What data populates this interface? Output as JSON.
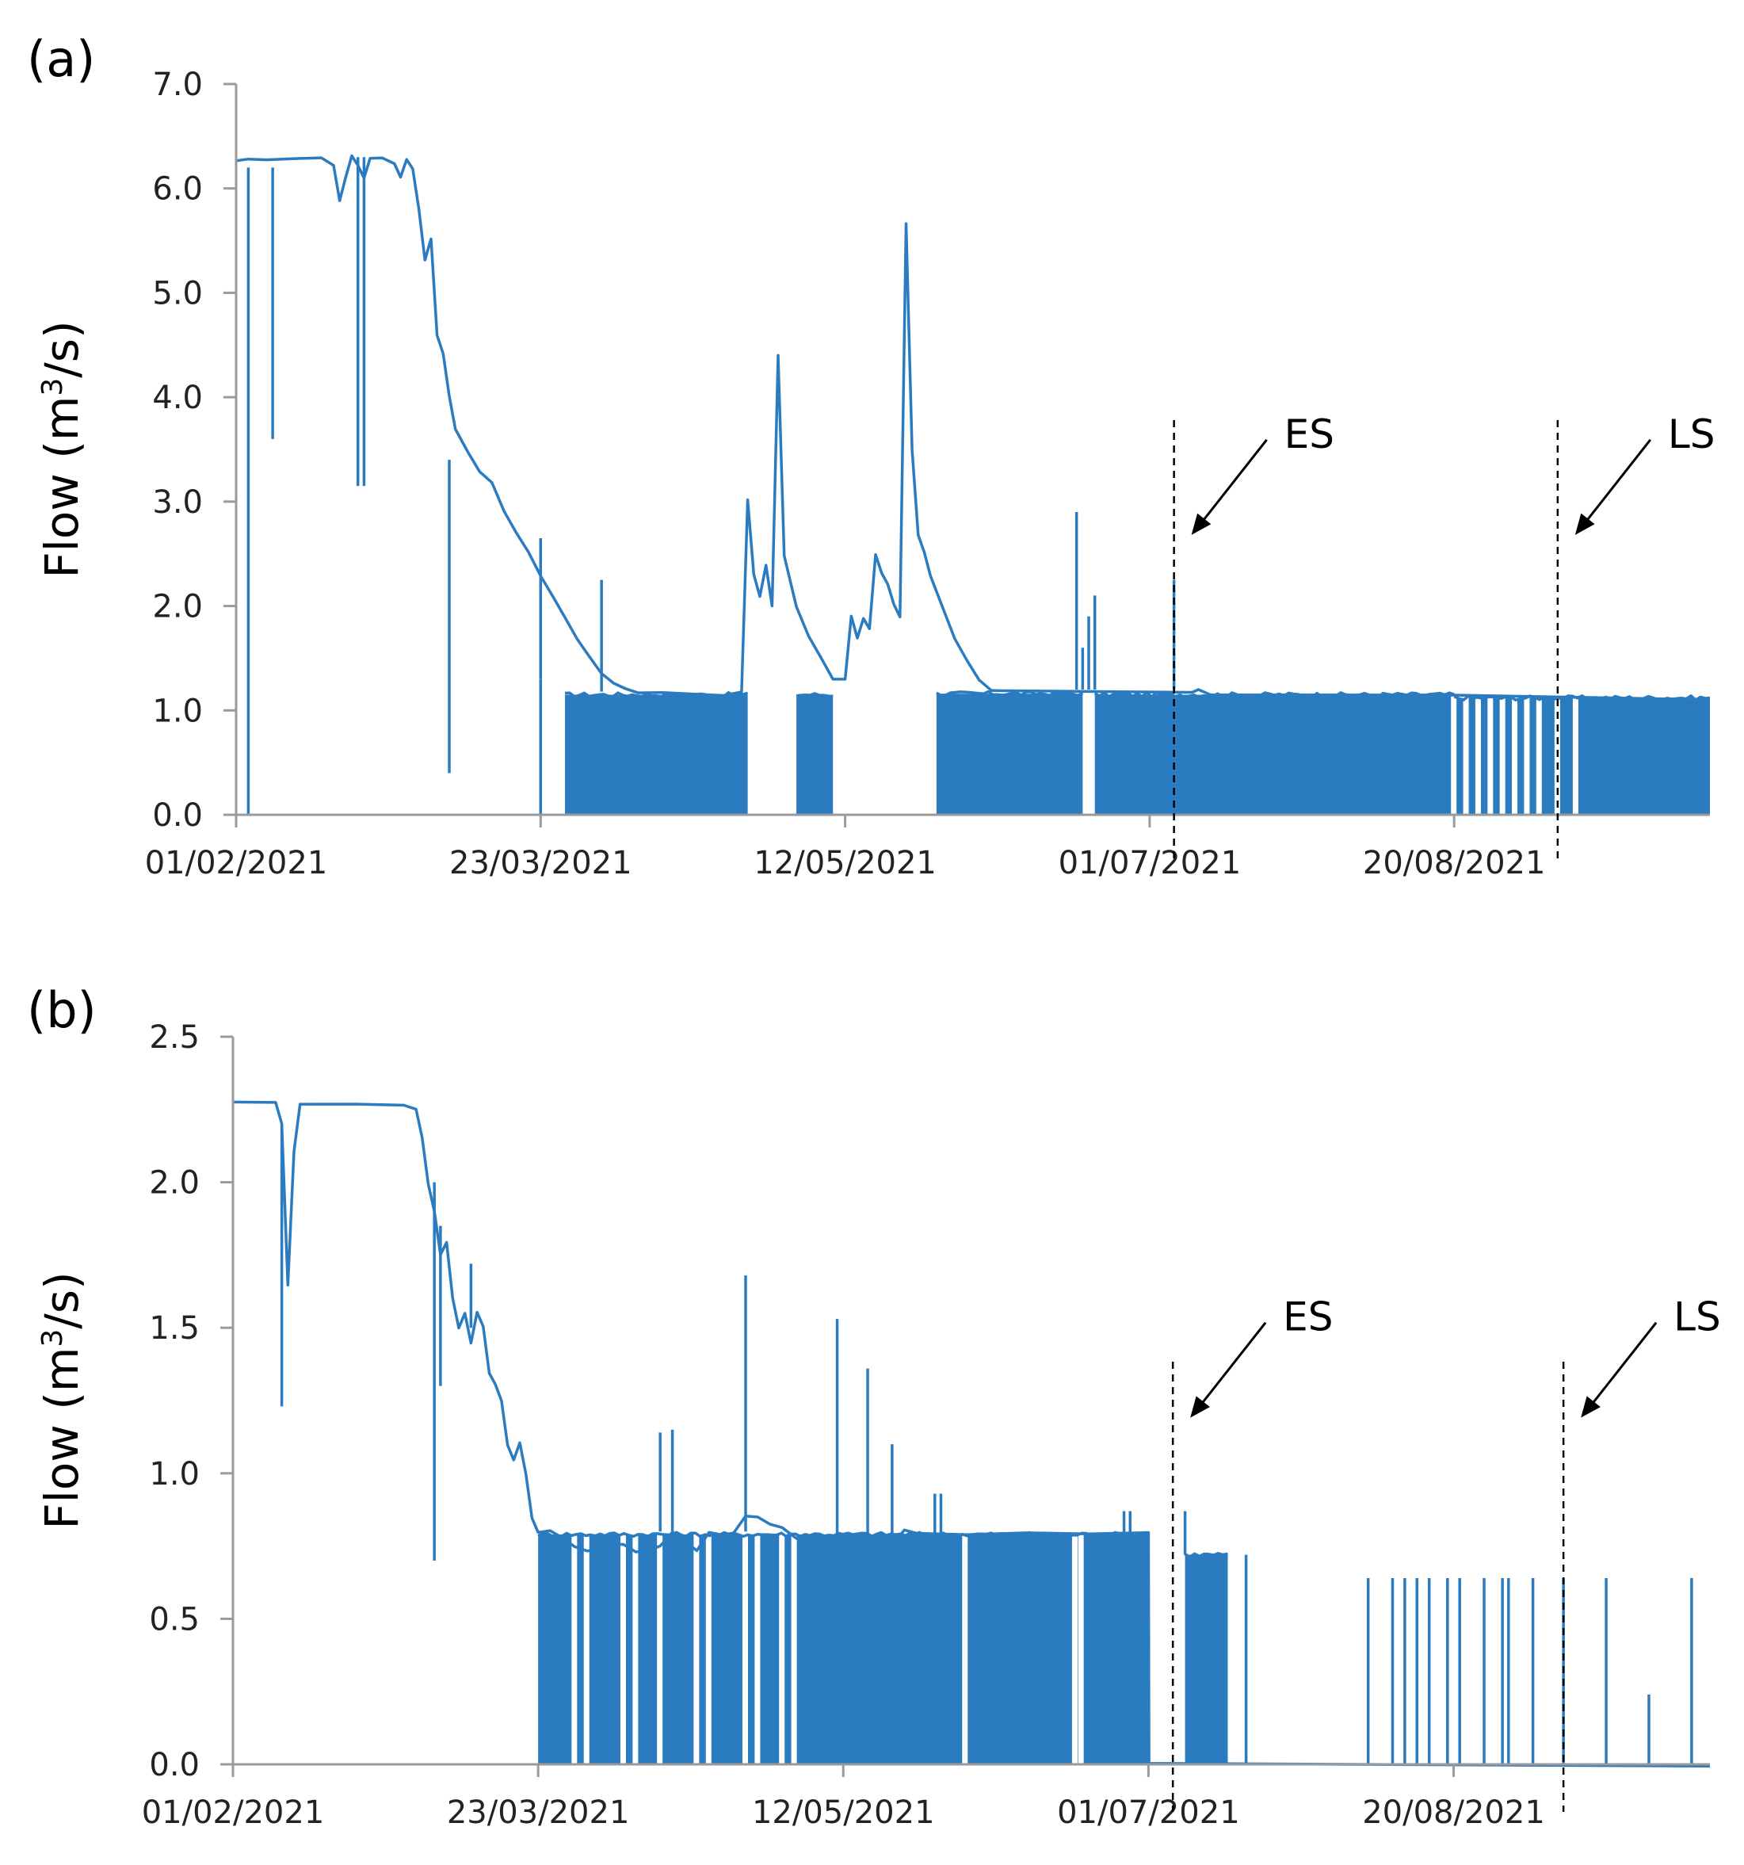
{
  "figure": {
    "series_color": "#2a7bbf"
  },
  "chart_data": [
    {
      "panel": "(a)",
      "type": "line",
      "ylabel_main": "Flow (m",
      "ylabel_sup": "3",
      "ylabel_tail": "/s)",
      "xlabel": "",
      "xlim_days": [
        0,
        242
      ],
      "ylim": [
        0,
        7
      ],
      "yticks": [
        "0.0",
        "1.0",
        "2.0",
        "3.0",
        "4.0",
        "5.0",
        "6.0",
        "7.0"
      ],
      "ytick_values": [
        0,
        1,
        2,
        3,
        4,
        5,
        6,
        7
      ],
      "xticks": [
        "01/02/2021",
        "23/03/2021",
        "12/05/2021",
        "01/07/2021",
        "20/08/2021"
      ],
      "xtick_days": [
        0,
        50,
        100,
        150,
        200
      ],
      "annotations": [
        {
          "label": "ES",
          "day": 154,
          "y": 3.0
        },
        {
          "label": "LS",
          "day": 217,
          "y": 3.0
        }
      ],
      "series": [
        {
          "name": "flow",
          "points": [
            [
              0,
              6.25
            ],
            [
              2,
              6.3
            ],
            [
              5,
              6.28
            ],
            [
              10,
              6.3
            ],
            [
              14,
              6.3
            ],
            [
              16,
              6.2
            ],
            [
              17,
              5.9
            ],
            [
              18,
              6.1
            ],
            [
              19,
              6.3
            ],
            [
              20,
              6.2
            ],
            [
              21,
              6.1
            ],
            [
              22,
              6.3
            ],
            [
              24,
              6.3
            ],
            [
              26,
              6.25
            ],
            [
              27,
              6.1
            ],
            [
              28,
              6.28
            ],
            [
              29,
              6.2
            ],
            [
              30,
              5.8
            ],
            [
              31,
              5.3
            ],
            [
              32,
              5.5
            ],
            [
              33,
              4.6
            ],
            [
              34,
              4.4
            ],
            [
              35,
              4.0
            ],
            [
              36,
              3.7
            ],
            [
              38,
              3.5
            ],
            [
              40,
              3.3
            ],
            [
              42,
              3.2
            ],
            [
              44,
              2.9
            ],
            [
              46,
              2.7
            ],
            [
              48,
              2.5
            ],
            [
              50,
              2.3
            ],
            [
              52,
              2.1
            ],
            [
              54,
              1.9
            ],
            [
              56,
              1.7
            ],
            [
              58,
              1.5
            ],
            [
              60,
              1.35
            ],
            [
              62,
              1.25
            ],
            [
              64,
              1.2
            ],
            [
              66,
              1.18
            ],
            [
              70,
              1.17
            ],
            [
              80,
              1.16
            ],
            [
              83,
              1.17
            ],
            [
              84,
              3.0
            ],
            [
              85,
              2.3
            ],
            [
              86,
              2.1
            ],
            [
              87,
              2.4
            ],
            [
              88,
              2.0
            ],
            [
              89,
              4.4
            ],
            [
              90,
              2.5
            ],
            [
              92,
              2.0
            ],
            [
              94,
              1.7
            ],
            [
              96,
              1.5
            ],
            [
              98,
              1.3
            ],
            [
              100,
              1.3
            ],
            [
              101,
              1.9
            ],
            [
              102,
              1.7
            ],
            [
              103,
              1.9
            ],
            [
              104,
              1.8
            ],
            [
              105,
              2.5
            ],
            [
              106,
              2.3
            ],
            [
              107,
              2.2
            ],
            [
              108,
              2.0
            ],
            [
              109,
              1.9
            ],
            [
              110,
              5.65
            ],
            [
              111,
              3.5
            ],
            [
              112,
              2.7
            ],
            [
              113,
              2.5
            ],
            [
              114,
              2.3
            ],
            [
              116,
              2.0
            ],
            [
              118,
              1.7
            ],
            [
              120,
              1.5
            ],
            [
              122,
              1.3
            ],
            [
              124,
              1.2
            ],
            [
              126,
              1.17
            ],
            [
              140,
              1.17
            ],
            [
              157,
              1.17
            ],
            [
              158,
              1.2
            ],
            [
              160,
              1.17
            ],
            [
              200,
              1.15
            ],
            [
              242,
              1.12
            ]
          ]
        },
        {
          "name": "flow_spikes",
          "events": [
            [
              2,
              6.2,
              0.0
            ],
            [
              6,
              6.2,
              3.6
            ],
            [
              20,
              6.3,
              3.15
            ],
            [
              21,
              6.3,
              3.15
            ],
            [
              35,
              3.4,
              0.4
            ],
            [
              50,
              1.3,
              0.0
            ],
            [
              50,
              1.3,
              2.65
            ],
            [
              60,
              1.18,
              2.25
            ],
            [
              154,
              1.2,
              2.25
            ],
            [
              138,
              1.2,
              2.9
            ],
            [
              139,
              1.2,
              1.6
            ],
            [
              140,
              1.2,
              1.9
            ],
            [
              141,
              1.2,
              2.1
            ]
          ]
        }
      ],
      "fill_blocks": [
        {
          "from": 54,
          "to": 84,
          "top": 1.15
        },
        {
          "from": 92,
          "to": 98,
          "top": 1.15
        },
        {
          "from": 115,
          "to": 139,
          "top": 1.16
        },
        {
          "from": 141,
          "to": 200,
          "top": 1.15
        },
        {
          "from": 200,
          "to": 242,
          "top": 1.12
        }
      ],
      "gap_days": [
        200,
        202,
        204,
        206,
        208,
        210,
        212,
        214,
        217,
        220
      ]
    },
    {
      "panel": "(b)",
      "type": "line",
      "ylabel_main": "Flow (m",
      "ylabel_sup": "3",
      "ylabel_tail": "/s)",
      "xlabel": "",
      "xlim_days": [
        0,
        242
      ],
      "ylim": [
        0,
        2.5
      ],
      "yticks": [
        "0.0",
        "0.5",
        "1.0",
        "1.5",
        "2.0",
        "2.5"
      ],
      "ytick_values": [
        0,
        0.5,
        1.0,
        1.5,
        2.0,
        2.5
      ],
      "xticks": [
        "01/02/2021",
        "23/03/2021",
        "12/05/2021",
        "01/07/2021",
        "20/08/2021"
      ],
      "xtick_days": [
        0,
        50,
        100,
        150,
        200
      ],
      "annotations": [
        {
          "label": "ES",
          "day": 154,
          "y": 1.3
        },
        {
          "label": "LS",
          "day": 218,
          "y": 1.3
        }
      ],
      "series": [
        {
          "name": "flow",
          "points": [
            [
              0,
              2.27
            ],
            [
              7,
              2.27
            ],
            [
              8,
              2.2
            ],
            [
              9,
              1.65
            ],
            [
              10,
              2.1
            ],
            [
              11,
              2.27
            ],
            [
              20,
              2.27
            ],
            [
              28,
              2.27
            ],
            [
              30,
              2.25
            ],
            [
              31,
              2.15
            ],
            [
              32,
              2.0
            ],
            [
              33,
              1.9
            ],
            [
              34,
              1.75
            ],
            [
              35,
              1.8
            ],
            [
              36,
              1.6
            ],
            [
              37,
              1.5
            ],
            [
              38,
              1.55
            ],
            [
              39,
              1.45
            ],
            [
              40,
              1.55
            ],
            [
              41,
              1.5
            ],
            [
              42,
              1.35
            ],
            [
              43,
              1.3
            ],
            [
              44,
              1.25
            ],
            [
              45,
              1.1
            ],
            [
              46,
              1.05
            ],
            [
              47,
              1.1
            ],
            [
              48,
              1.0
            ],
            [
              49,
              0.85
            ],
            [
              50,
              0.8
            ],
            [
              52,
              0.8
            ],
            [
              54,
              0.78
            ],
            [
              56,
              0.75
            ],
            [
              58,
              0.73
            ],
            [
              60,
              0.73
            ],
            [
              62,
              0.76
            ],
            [
              64,
              0.75
            ],
            [
              66,
              0.73
            ],
            [
              68,
              0.73
            ],
            [
              70,
              0.75
            ],
            [
              72,
              0.8
            ],
            [
              74,
              0.76
            ],
            [
              76,
              0.74
            ],
            [
              78,
              0.79
            ],
            [
              80,
              0.79
            ],
            [
              82,
              0.8
            ],
            [
              84,
              0.85
            ],
            [
              86,
              0.85
            ],
            [
              88,
              0.82
            ],
            [
              90,
              0.82
            ],
            [
              92,
              0.78
            ],
            [
              94,
              0.75
            ],
            [
              96,
              0.73
            ],
            [
              100,
              0.73
            ],
            [
              104,
              0.75
            ],
            [
              106,
              0.8
            ],
            [
              108,
              0.75
            ],
            [
              110,
              0.8
            ],
            [
              112,
              0.79
            ],
            [
              120,
              0.79
            ],
            [
              130,
              0.79
            ],
            [
              140,
              0.79
            ],
            [
              150,
              0.79
            ],
            [
              150.1,
              0.0
            ],
            [
              242,
              0.0
            ]
          ]
        },
        {
          "name": "flow_spikes",
          "events": [
            [
              8,
              2.2,
              1.23
            ],
            [
              33,
              2.0,
              0.7
            ],
            [
              34,
              1.85,
              1.3
            ],
            [
              39,
              1.5,
              1.72
            ],
            [
              70,
              0.8,
              1.14
            ],
            [
              72,
              0.8,
              1.15
            ],
            [
              84,
              0.8,
              1.68
            ],
            [
              99,
              0.75,
              1.53
            ],
            [
              104,
              0.75,
              1.36
            ],
            [
              108,
              0.75,
              1.1
            ],
            [
              115,
              0.79,
              0.93
            ],
            [
              116,
              0.79,
              0.93
            ],
            [
              146,
              0.79,
              0.87
            ],
            [
              147,
              0.79,
              0.87
            ],
            [
              156,
              0.72,
              0.87
            ],
            [
              160,
              0.72,
              0.72
            ],
            [
              166,
              0.0,
              0.72
            ],
            [
              186,
              0.0,
              0.64
            ],
            [
              190,
              0.0,
              0.64
            ],
            [
              192,
              0.0,
              0.64
            ],
            [
              194,
              0.0,
              0.64
            ],
            [
              196,
              0.0,
              0.64
            ],
            [
              199,
              0.0,
              0.64
            ],
            [
              201,
              0.0,
              0.64
            ],
            [
              205,
              0.0,
              0.64
            ],
            [
              208,
              0.0,
              0.64
            ],
            [
              209,
              0.0,
              0.64
            ],
            [
              213,
              0.0,
              0.64
            ],
            [
              218,
              0.0,
              0.64
            ],
            [
              225,
              0.0,
              0.64
            ],
            [
              232,
              0.0,
              0.24
            ],
            [
              239,
              0.0,
              0.64
            ]
          ]
        }
      ],
      "fill_blocks": [
        {
          "from": 50,
          "to": 150,
          "top": 0.79
        },
        {
          "from": 156,
          "to": 163,
          "top": 0.72
        }
      ],
      "gap_days": [
        56,
        58,
        64,
        66,
        70,
        76,
        78,
        84,
        86,
        90,
        92,
        120,
        138,
        139
      ]
    }
  ]
}
